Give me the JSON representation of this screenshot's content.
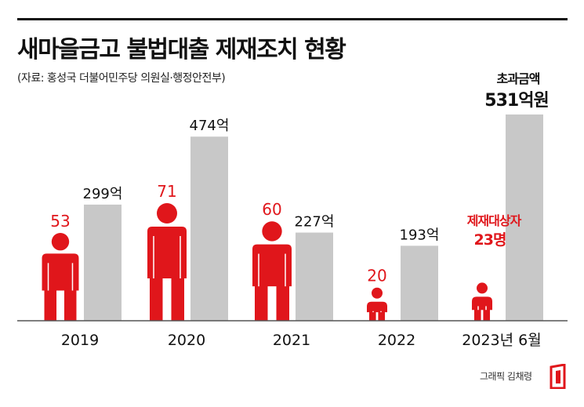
{
  "header": {
    "title": "새마을금고 불법대출 제재조치 현황",
    "source": "(자료: 홍성국 더불어민주당 의원실·행정안전부)"
  },
  "chart_data": {
    "type": "bar",
    "title": "새마을금고 불법대출 제재조치 현황",
    "categories": [
      "2019",
      "2020",
      "2021",
      "2022",
      "2023년 6월"
    ],
    "series": [
      {
        "name": "제재대상자",
        "unit": "명",
        "values": [
          53,
          71,
          60,
          20,
          23
        ],
        "labels": [
          "53",
          "71",
          "60",
          "20",
          "23명"
        ],
        "color": "#e0161b"
      },
      {
        "name": "초과금액",
        "unit": "억원",
        "values": [
          299,
          474,
          227,
          193,
          531
        ],
        "labels": [
          "299억",
          "474억",
          "227억",
          "193억",
          "531억원"
        ],
        "color": "#c8c8c8"
      }
    ],
    "annotations": {
      "persons_legend": "제재대상자",
      "amount_legend": "초과금액"
    }
  },
  "footer": {
    "credit": "그래픽 김채령"
  },
  "colors": {
    "accent": "#e0161b",
    "bar": "#c8c8c8",
    "text": "#111111"
  }
}
